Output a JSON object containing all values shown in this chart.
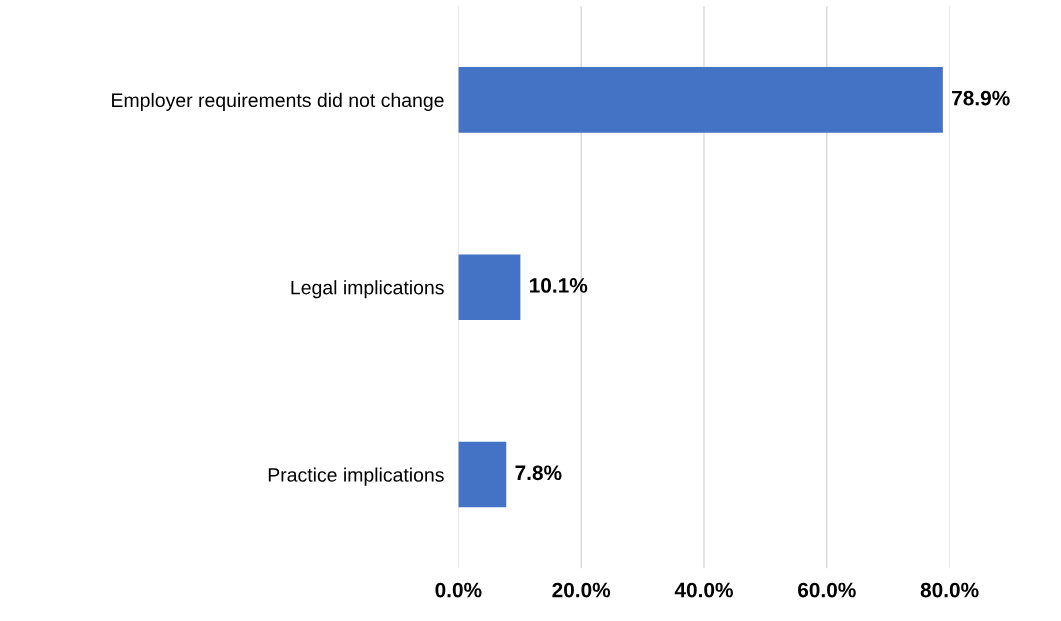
{
  "chart_data": {
    "type": "bar",
    "orientation": "horizontal",
    "categories": [
      "Employer requirements did not change",
      "Legal implications",
      "Practice implications"
    ],
    "values": [
      78.9,
      10.1,
      7.8
    ],
    "color": "#4472c4",
    "value_labels": [
      "78.9%",
      "10.1%",
      "7.8%"
    ],
    "xlim": [
      0,
      80
    ],
    "xticks": [
      {
        "value": 0,
        "label": "0.0%"
      },
      {
        "value": 20,
        "label": "20.0%"
      },
      {
        "value": 40,
        "label": "40.0%"
      },
      {
        "value": 60,
        "label": "60.0%"
      },
      {
        "value": 80,
        "label": "80.0%"
      }
    ],
    "grid": "x",
    "legend": false
  }
}
